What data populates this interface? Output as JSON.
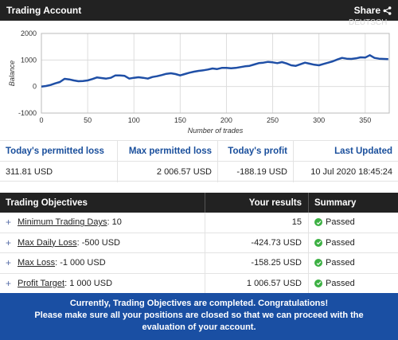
{
  "header": {
    "title": "Trading Account",
    "share_label": "Share"
  },
  "language_ghost": {
    "label": "DEUTSCH"
  },
  "chart_data": {
    "type": "line",
    "xlabel": "Number of trades",
    "ylabel": "Balance",
    "xlim": [
      0,
      376
    ],
    "ylim": [
      -1000,
      2000
    ],
    "x_ticks": [
      0,
      50,
      100,
      150,
      200,
      250,
      300,
      350
    ],
    "y_ticks": [
      -1000,
      0,
      1000,
      2000
    ],
    "grid": true,
    "series_color": "#1f4fa6",
    "series": [
      {
        "x": [
          0,
          5,
          10,
          15,
          20,
          25,
          30,
          35,
          40,
          45,
          50,
          55,
          60,
          65,
          70,
          75,
          80,
          85,
          90,
          95,
          100,
          105,
          110,
          115,
          120,
          125,
          130,
          135,
          140,
          145,
          150,
          155,
          160,
          165,
          170,
          175,
          180,
          185,
          190,
          195,
          200,
          205,
          210,
          215,
          220,
          225,
          230,
          235,
          240,
          245,
          250,
          255,
          260,
          265,
          270,
          275,
          280,
          285,
          290,
          295,
          300,
          305,
          310,
          315,
          320,
          325,
          330,
          335,
          340,
          345,
          350,
          355,
          360,
          365,
          370,
          375
        ],
        "y": [
          0,
          20,
          60,
          120,
          170,
          290,
          270,
          230,
          200,
          210,
          230,
          280,
          340,
          320,
          300,
          330,
          420,
          420,
          400,
          300,
          330,
          350,
          330,
          300,
          360,
          390,
          430,
          480,
          500,
          470,
          420,
          470,
          520,
          560,
          590,
          610,
          640,
          680,
          660,
          700,
          700,
          690,
          700,
          730,
          760,
          780,
          830,
          880,
          900,
          930,
          910,
          880,
          920,
          870,
          800,
          780,
          840,
          900,
          860,
          820,
          800,
          850,
          900,
          950,
          1020,
          1080,
          1050,
          1040,
          1060,
          1100,
          1090,
          1180,
          1080,
          1050,
          1040,
          1030
        ]
      }
    ]
  },
  "stats": {
    "headers": [
      "Today's permitted loss",
      "Max permitted loss",
      "Today's profit",
      "Last Updated"
    ],
    "values": [
      "311.81 USD",
      "2 006.57 USD",
      "-188.19 USD",
      "10 Jul 2020 18:45:24"
    ]
  },
  "objectives": {
    "headers": {
      "name": "Trading Objectives",
      "results": "Your results",
      "summary": "Summary"
    },
    "rows": [
      {
        "name": "Minimum Trading Days",
        "target": ": 10",
        "result": "15",
        "status": "Passed"
      },
      {
        "name": "Max Daily Loss",
        "target": ": -500 USD",
        "result": "-424.73 USD",
        "status": "Passed"
      },
      {
        "name": "Max Loss",
        "target": ": -1 000 USD",
        "result": "-158.25 USD",
        "status": "Passed"
      },
      {
        "name": "Profit Target",
        "target": ": 1 000 USD",
        "result": "1 006.57 USD",
        "status": "Passed"
      }
    ]
  },
  "banner": {
    "line1": "Currently, Trading Objectives are completed. Congratulations!",
    "line2": "Please make sure all your positions are closed so that we can proceed with the evaluation of your account."
  },
  "colors": {
    "dark_bar": "#222222",
    "accent_blue": "#1a4f9c",
    "banner_blue": "#1a4fa3",
    "passed_green": "#3cb043"
  }
}
